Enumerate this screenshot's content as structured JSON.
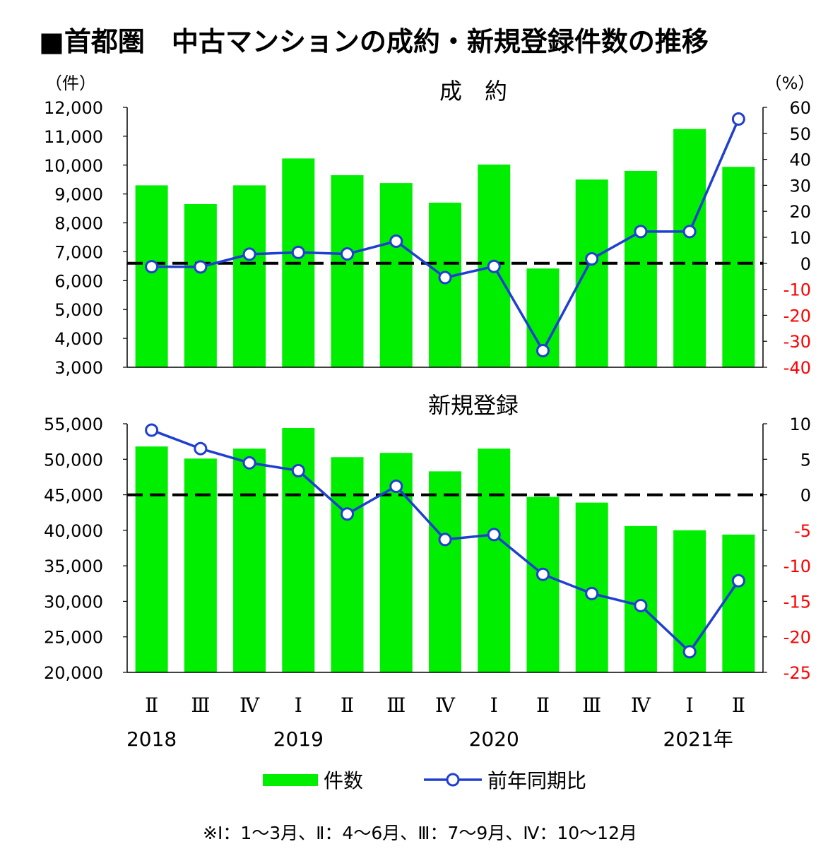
{
  "page": {
    "title": "■首都圏　中古マンションの成約・新規登録件数の推移",
    "note": "※Ⅰ：1～3月、Ⅱ：4～6月、Ⅲ：7～9月、Ⅳ：10～12月"
  },
  "colors": {
    "bar": "#00ee00",
    "line": "#1f3fd0",
    "zero_line": "#000000",
    "negative_tick": "#ff0000"
  },
  "chart_data": [
    {
      "type": "bar",
      "title": "成　約",
      "left_unit": "（件）",
      "right_unit": "（%）",
      "left_ylim": [
        3000,
        12000
      ],
      "left_ticks": [
        "12,000",
        "11,000",
        "10,000",
        "9,000",
        "8,000",
        "7,000",
        "6,000",
        "5,000",
        "4,000",
        "3,000"
      ],
      "right_ylim": [
        -40,
        60
      ],
      "right_ticks": [
        "60",
        "50",
        "40",
        "30",
        "20",
        "10",
        "0",
        "-10",
        "-20",
        "-30",
        "-40"
      ],
      "categories": [
        "2018 Ⅱ",
        "2018 Ⅲ",
        "2018 Ⅳ",
        "2019 Ⅰ",
        "2019 Ⅱ",
        "2019 Ⅲ",
        "2019 Ⅳ",
        "2020 Ⅰ",
        "2020 Ⅱ",
        "2020 Ⅲ",
        "2020 Ⅳ",
        "2021 Ⅰ",
        "2021 Ⅱ"
      ],
      "series": [
        {
          "name": "件数",
          "axis": "left",
          "type": "bar",
          "values": [
            9300,
            8650,
            9300,
            10230,
            9650,
            9380,
            8700,
            10020,
            6420,
            9500,
            9800,
            11250,
            9940
          ]
        },
        {
          "name": "前年同期比",
          "axis": "right",
          "type": "line",
          "values": [
            -1.3,
            -1.4,
            3.5,
            4.2,
            3.6,
            8.5,
            -5.5,
            -1.2,
            -33.6,
            1.7,
            12.2,
            12.2,
            55.5
          ]
        }
      ]
    },
    {
      "type": "bar",
      "title": "新規登録",
      "left_ylim": [
        20000,
        55000
      ],
      "left_ticks": [
        "55,000",
        "50,000",
        "45,000",
        "40,000",
        "35,000",
        "30,000",
        "25,000",
        "20,000"
      ],
      "right_ylim": [
        -25,
        10
      ],
      "right_ticks": [
        "10",
        "5",
        "0",
        "-5",
        "-10",
        "-15",
        "-20",
        "-25"
      ],
      "categories": [
        "2018 Ⅱ",
        "2018 Ⅲ",
        "2018 Ⅳ",
        "2019 Ⅰ",
        "2019 Ⅱ",
        "2019 Ⅲ",
        "2019 Ⅳ",
        "2020 Ⅰ",
        "2020 Ⅱ",
        "2020 Ⅲ",
        "2020 Ⅳ",
        "2021 Ⅰ",
        "2021 Ⅱ"
      ],
      "series": [
        {
          "name": "件数",
          "axis": "left",
          "type": "bar",
          "values": [
            51800,
            50100,
            51500,
            54400,
            50300,
            50900,
            48300,
            51500,
            44700,
            43900,
            40600,
            40000,
            39400
          ]
        },
        {
          "name": "前年同期比",
          "axis": "right",
          "type": "line",
          "values": [
            9.1,
            6.5,
            4.5,
            3.4,
            -2.7,
            1.2,
            -6.3,
            -5.6,
            -11.2,
            -13.9,
            -15.6,
            -22.1,
            -12.1
          ]
        }
      ]
    }
  ],
  "x_axis": {
    "quarters": [
      "Ⅱ",
      "Ⅲ",
      "Ⅳ",
      "Ⅰ",
      "Ⅱ",
      "Ⅲ",
      "Ⅳ",
      "Ⅰ",
      "Ⅱ",
      "Ⅲ",
      "Ⅳ",
      "Ⅰ",
      "Ⅱ"
    ],
    "years": [
      {
        "label": "2018",
        "index": 0
      },
      {
        "label": "2019",
        "index": 3
      },
      {
        "label": "2020",
        "index": 7
      },
      {
        "label": "2021年",
        "index": 11
      }
    ]
  },
  "legend": {
    "bar_label": "件数",
    "line_label": "前年同期比"
  }
}
